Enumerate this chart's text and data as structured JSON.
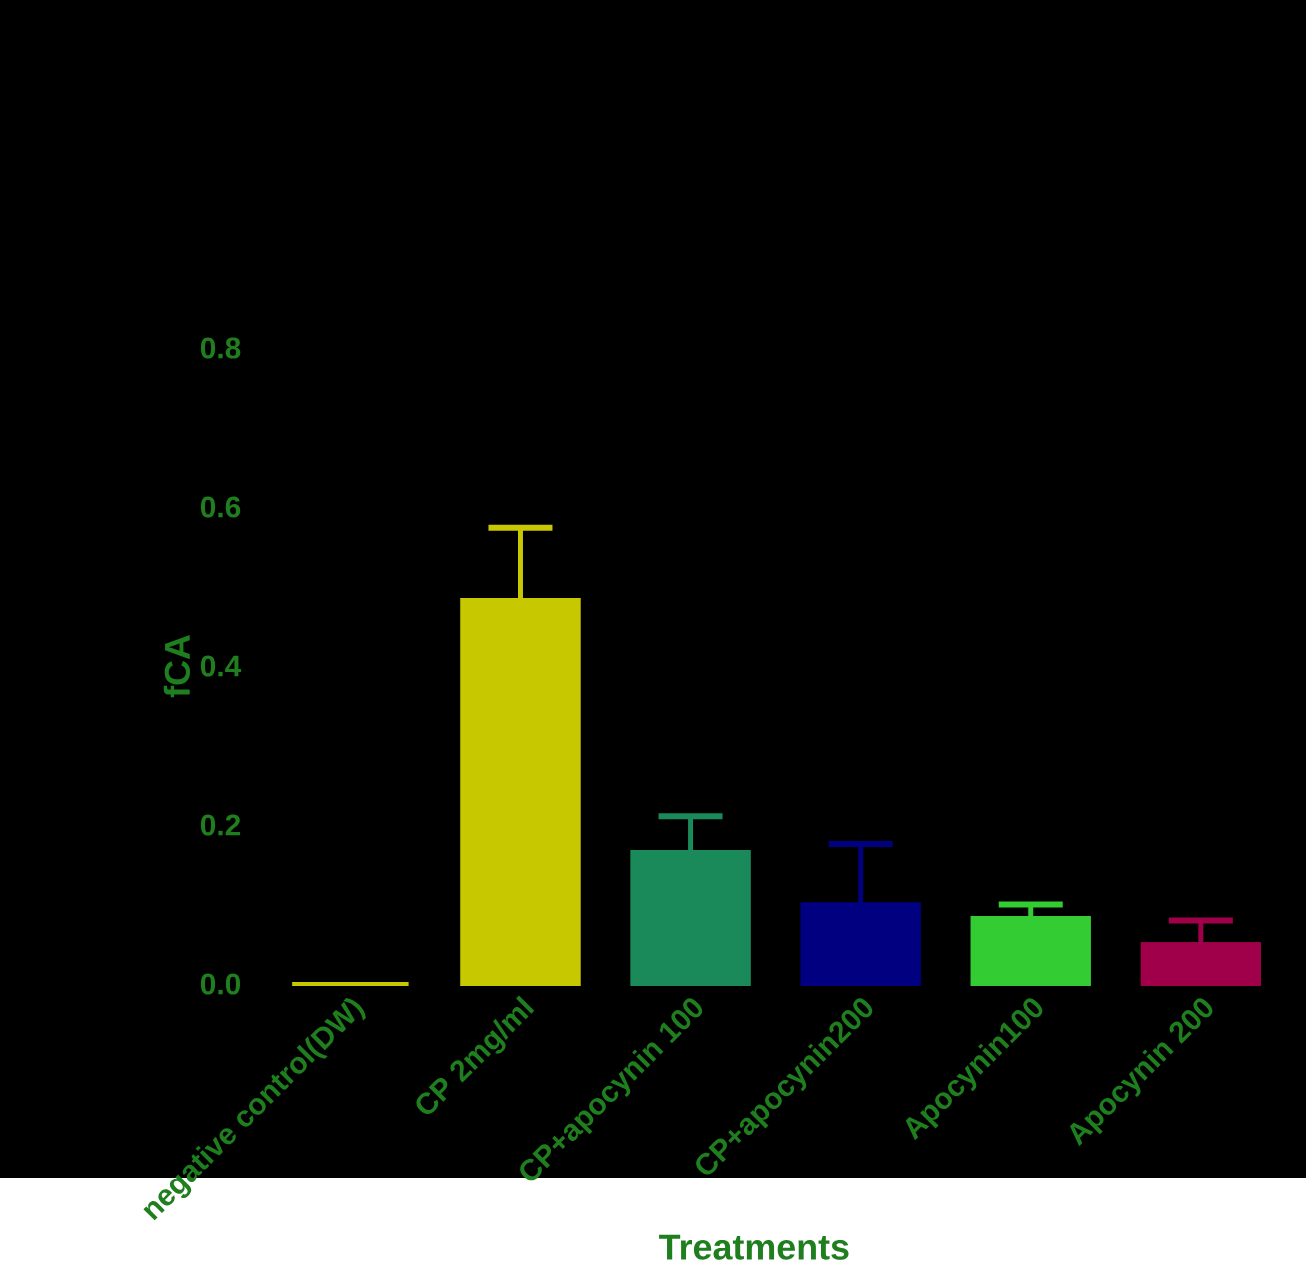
{
  "chart_data": {
    "type": "bar",
    "xlabel": "Treatments",
    "ylabel": "fCA",
    "categories": [
      "negative control(DW)",
      "CP 2mg/ml",
      "CP+apocynin 100",
      "CP+apocynin200",
      "Apocynin100",
      "Apocynin 200"
    ],
    "values": [
      0,
      0.483,
      0.166,
      0.1,
      0.083,
      0.05
    ],
    "errors": [
      null,
      0.091,
      0.045,
      0.076,
      0.017,
      0.03
    ],
    "colors": [
      "#c8c800",
      "#c8c800",
      "#1a8a5a",
      "#000080",
      "#33cc33",
      "#a0004a"
    ],
    "ylim": [
      0,
      0.8
    ],
    "yticks": [
      {
        "value": 0,
        "label": "0.0"
      },
      {
        "value": 0.2,
        "label": "0.2"
      },
      {
        "value": 0.4,
        "label": "0.4"
      },
      {
        "value": 0.6,
        "label": "0.6"
      },
      {
        "value": 0.8,
        "label": "0.8"
      }
    ]
  }
}
